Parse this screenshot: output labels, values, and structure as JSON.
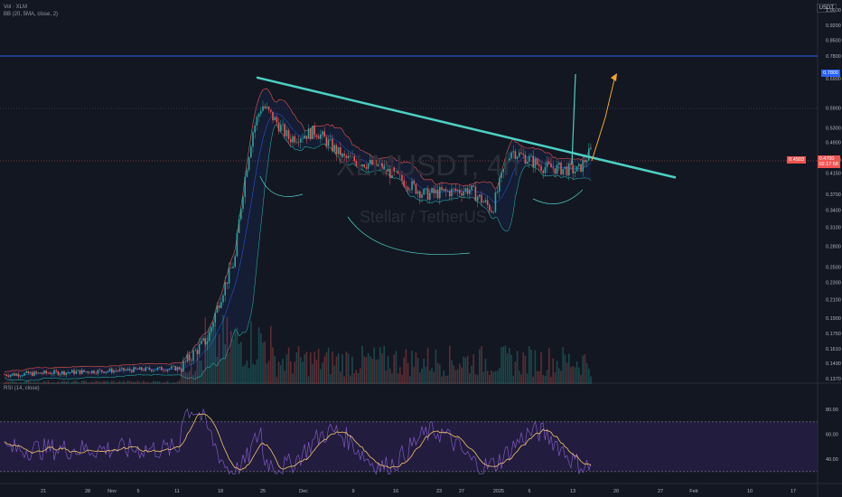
{
  "header": {
    "symbol_line": "Vol · XLM",
    "indicator_line": "BB (20, 5MA, close, 2)",
    "rsi_label": "RSI (14, close)",
    "currency": "USDT"
  },
  "watermark": {
    "ticker": "XLMUSDT, 4h",
    "subtitle": "Stellar / TetherUS"
  },
  "price_badges": {
    "level": "0.7800",
    "bid": "0.4503",
    "last": "0.4700",
    "last_sub": "02:17:58"
  },
  "colors": {
    "up": "#26a69a",
    "down": "#ef5350",
    "trendline": "#4dd0c4",
    "projection": "#f5a623",
    "level_line": "#2962ff",
    "rsi_line": "#7e57c2",
    "rsi_ma": "#f5c36b",
    "rsi_band": "#2a1f4a"
  },
  "chart_data": {
    "type": "candlestick",
    "price_axis": [
      "1.0000",
      "0.9200",
      "0.8500",
      "0.7800",
      "0.6900",
      "0.5900",
      "0.5300",
      "0.4900",
      "0.4450",
      "0.4150",
      "0.3700",
      "0.3400",
      "0.3100",
      "0.2800",
      "0.2500",
      "0.2300",
      "0.2100",
      "0.1900",
      "0.1750",
      "0.1610",
      "0.1490",
      "0.1370"
    ],
    "rsi_axis": [
      "80.00",
      "60.00",
      "40.00"
    ],
    "time_axis": [
      "21",
      "28",
      "Nov",
      "5",
      "11",
      "18",
      "25",
      "Dec",
      "9",
      "16",
      "23",
      "27",
      "2025",
      "6",
      "13",
      "20",
      "27",
      "Feb",
      "10",
      "17"
    ],
    "trendline": {
      "from_price": 0.695,
      "to_price": 0.405
    },
    "horizontal_level": 0.78,
    "rsi_levels": [
      70,
      30
    ]
  }
}
